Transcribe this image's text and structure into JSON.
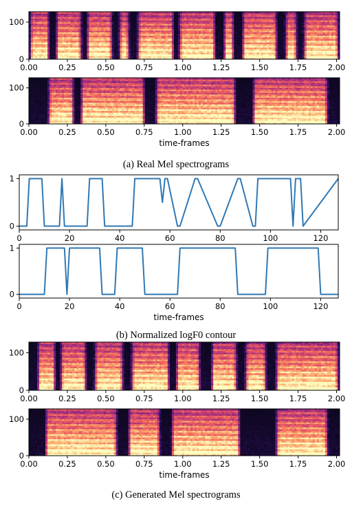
{
  "captions": {
    "a": "(a) Real Mel spectrograms",
    "b": "(b) Normalized logF0 contour",
    "c": "(c) Generated Mel spectrograms"
  },
  "colors": {
    "line": "#2f78b4",
    "spec_dark": "#06040f",
    "spec_bright": "#fcfdbf"
  },
  "chart_data": [
    {
      "id": "real-mel-1",
      "type": "heatmap",
      "xlim": [
        0,
        2.02
      ],
      "ylim": [
        0,
        128
      ],
      "x_ticks": [
        0.0,
        0.25,
        0.5,
        0.75,
        1.0,
        1.25,
        1.5,
        1.75,
        2.0
      ],
      "x_tick_labels": [
        "0.00",
        "0.25",
        "0.50",
        "0.75",
        "1.00",
        "1.25",
        "1.50",
        "1.75",
        "2.00"
      ],
      "y_ticks": [
        0,
        100
      ],
      "y_tick_labels": [
        "0",
        "100"
      ],
      "xlabel": "",
      "voiced_segments": [
        [
          0.0,
          0.14
        ],
        [
          0.17,
          0.35
        ],
        [
          0.37,
          0.55
        ],
        [
          0.58,
          0.66
        ],
        [
          0.7,
          0.95
        ],
        [
          0.97,
          1.22
        ],
        [
          1.26,
          1.34
        ],
        [
          1.38,
          1.62
        ],
        [
          1.66,
          1.75
        ],
        [
          1.78,
          2.02
        ]
      ]
    },
    {
      "id": "real-mel-2",
      "type": "heatmap",
      "xlim": [
        0,
        2.02
      ],
      "ylim": [
        0,
        128
      ],
      "x_ticks": [
        0.0,
        0.25,
        0.5,
        0.75,
        1.0,
        1.25,
        1.5,
        1.75,
        2.0
      ],
      "x_tick_labels": [
        "0.00",
        "0.25",
        "0.50",
        "0.75",
        "1.00",
        "1.25",
        "1.50",
        "1.75",
        "2.00"
      ],
      "y_ticks": [
        0,
        100
      ],
      "y_tick_labels": [
        "0",
        "100"
      ],
      "xlabel": "time-frames",
      "voiced_segments": [
        [
          0.12,
          0.3
        ],
        [
          0.33,
          0.76
        ],
        [
          0.82,
          1.35
        ],
        [
          1.45,
          1.95
        ]
      ]
    },
    {
      "id": "logf0-1",
      "type": "line",
      "xlim": [
        0,
        127
      ],
      "ylim": [
        -0.08,
        1.08
      ],
      "x_ticks": [
        0,
        20,
        40,
        60,
        80,
        100,
        120
      ],
      "x_tick_labels": [
        "0",
        "20",
        "40",
        "60",
        "80",
        "100",
        "120"
      ],
      "y_ticks": [
        0,
        1
      ],
      "y_tick_labels": [
        "0",
        "1"
      ],
      "xlabel": "",
      "x": [
        0,
        3,
        4,
        9,
        10,
        16,
        17,
        18,
        27,
        28,
        33,
        34,
        45,
        46,
        56,
        57,
        58,
        59,
        63,
        64,
        70,
        71,
        79,
        80,
        87,
        88,
        93,
        94,
        95,
        96,
        108,
        109,
        110,
        112,
        113,
        127
      ],
      "y": [
        0,
        0,
        1,
        1,
        0,
        0,
        1,
        0,
        0,
        1,
        1,
        0,
        0,
        1,
        1,
        0.5,
        1,
        1,
        0,
        0,
        1,
        1,
        0,
        0,
        1,
        1,
        0,
        0,
        1,
        1,
        1,
        0,
        1,
        1,
        0,
        1
      ]
    },
    {
      "id": "logf0-2",
      "type": "line",
      "xlim": [
        0,
        127
      ],
      "ylim": [
        -0.08,
        1.08
      ],
      "x_ticks": [
        0,
        20,
        40,
        60,
        80,
        100,
        120
      ],
      "x_tick_labels": [
        "0",
        "20",
        "40",
        "60",
        "80",
        "100",
        "120"
      ],
      "y_ticks": [
        0,
        1
      ],
      "y_tick_labels": [
        "0",
        "1"
      ],
      "xlabel": "time-frames",
      "x": [
        0,
        10,
        11,
        18,
        19,
        20,
        32,
        33,
        38,
        39,
        49,
        50,
        63,
        64,
        86,
        87,
        98,
        99,
        119,
        120,
        127
      ],
      "y": [
        0,
        0,
        1,
        1,
        0,
        1,
        1,
        0,
        0,
        1,
        1,
        0,
        0,
        1,
        1,
        0,
        0,
        1,
        1,
        0,
        0
      ]
    },
    {
      "id": "gen-mel-1",
      "type": "heatmap",
      "xlim": [
        0,
        2.02
      ],
      "ylim": [
        0,
        128
      ],
      "x_ticks": [
        0.0,
        0.25,
        0.5,
        0.75,
        1.0,
        1.25,
        1.5,
        1.75,
        2.0
      ],
      "x_tick_labels": [
        "0.00",
        "0.25",
        "0.50",
        "0.75",
        "1.00",
        "1.25",
        "1.50",
        "1.75",
        "2.00"
      ],
      "y_ticks": [
        0,
        100
      ],
      "y_tick_labels": [
        "0",
        "100"
      ],
      "xlabel": "",
      "voiced_segments": [
        [
          0.05,
          0.18
        ],
        [
          0.2,
          0.38
        ],
        [
          0.42,
          0.62
        ],
        [
          0.66,
          0.92
        ],
        [
          0.95,
          1.12
        ],
        [
          1.18,
          1.36
        ],
        [
          1.4,
          1.55
        ],
        [
          1.6,
          2.02
        ]
      ]
    },
    {
      "id": "gen-mel-2",
      "type": "heatmap",
      "xlim": [
        0,
        2.02
      ],
      "ylim": [
        0,
        128
      ],
      "x_ticks": [
        0.0,
        0.25,
        0.5,
        0.75,
        1.0,
        1.25,
        1.5,
        1.75,
        2.0
      ],
      "x_tick_labels": [
        "0.00",
        "0.25",
        "0.50",
        "0.75",
        "1.00",
        "1.25",
        "1.50",
        "1.75",
        "2.00"
      ],
      "y_ticks": [
        0,
        100
      ],
      "y_tick_labels": [
        "0",
        "100"
      ],
      "xlabel": "time-frames",
      "voiced_segments": [
        [
          0.1,
          0.58
        ],
        [
          0.64,
          0.86
        ],
        [
          0.92,
          1.38
        ],
        [
          1.6,
          1.95
        ]
      ]
    }
  ]
}
